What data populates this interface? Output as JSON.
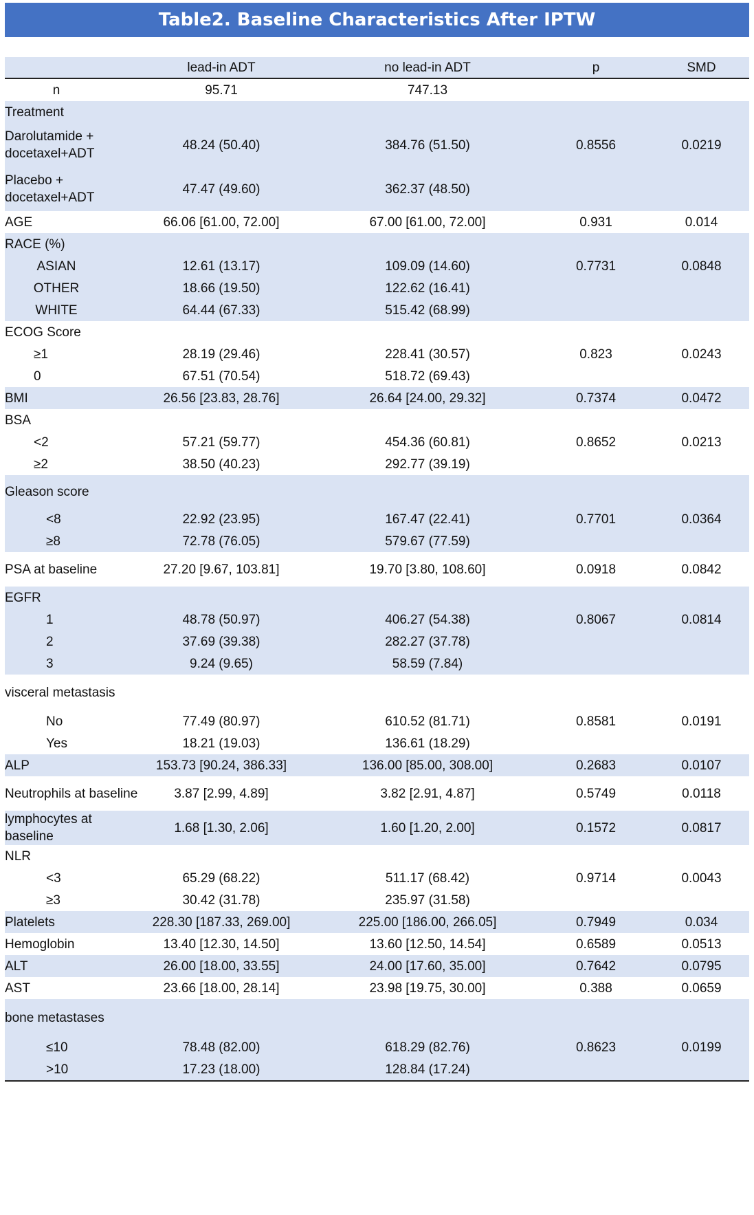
{
  "title": "Table2. Baseline Characteristics After IPTW",
  "columns": [
    "",
    "lead-in ADT",
    "no lead-in ADT",
    "p",
    "SMD"
  ],
  "rows": [
    {
      "label": "n",
      "a": "95.71",
      "b": "747.13",
      "p": "",
      "smd": ""
    },
    {
      "label": "Treatment",
      "a": "",
      "b": "",
      "p": "",
      "smd": ""
    },
    {
      "label": "Darolutamide + docetaxel+ADT",
      "a": "48.24 (50.40)",
      "b": "384.76 (51.50)",
      "p": "0.8556",
      "smd": "0.0219"
    },
    {
      "label": "Placebo + docetaxel+ADT",
      "a": "47.47 (49.60)",
      "b": "362.37 (48.50)",
      "p": "",
      "smd": ""
    },
    {
      "label": "AGE",
      "a": "66.06 [61.00, 72.00]",
      "b": "67.00 [61.00, 72.00]",
      "p": "0.931",
      "smd": "0.014"
    },
    {
      "label": "RACE (%)",
      "a": "",
      "b": "",
      "p": "",
      "smd": ""
    },
    {
      "label": "ASIAN",
      "a": "12.61 (13.17)",
      "b": "109.09 (14.60)",
      "p": "0.7731",
      "smd": "0.0848"
    },
    {
      "label": "OTHER",
      "a": "18.66 (19.50)",
      "b": "122.62 (16.41)",
      "p": "",
      "smd": ""
    },
    {
      "label": "WHITE",
      "a": "64.44 (67.33)",
      "b": "515.42 (68.99)",
      "p": "",
      "smd": ""
    },
    {
      "label": "ECOG Score",
      "a": "",
      "b": "",
      "p": "",
      "smd": ""
    },
    {
      "label": "≥1",
      "a": "28.19 (29.46)",
      "b": "228.41 (30.57)",
      "p": "0.823",
      "smd": "0.0243"
    },
    {
      "label": "0",
      "a": "67.51 (70.54)",
      "b": "518.72 (69.43)",
      "p": "",
      "smd": ""
    },
    {
      "label": "BMI",
      "a": "26.56 [23.83, 28.76]",
      "b": "26.64 [24.00, 29.32]",
      "p": "0.7374",
      "smd": "0.0472"
    },
    {
      "label": "BSA",
      "a": "",
      "b": "",
      "p": "",
      "smd": ""
    },
    {
      "label": "<2",
      "a": "57.21 (59.77)",
      "b": "454.36 (60.81)",
      "p": "0.8652",
      "smd": "0.0213"
    },
    {
      "label": "≥2",
      "a": "38.50 (40.23)",
      "b": "292.77 (39.19)",
      "p": "",
      "smd": ""
    },
    {
      "label": "Gleason score",
      "a": "",
      "b": "",
      "p": "",
      "smd": ""
    },
    {
      "label": "<8",
      "a": "22.92 (23.95)",
      "b": "167.47 (22.41)",
      "p": "0.7701",
      "smd": "0.0364"
    },
    {
      "label": "≥8",
      "a": "72.78 (76.05)",
      "b": "579.67 (77.59)",
      "p": "",
      "smd": ""
    },
    {
      "label": "PSA at baseline",
      "a": "27.20 [9.67, 103.81]",
      "b": "19.70 [3.80, 108.60]",
      "p": "0.0918",
      "smd": "0.0842"
    },
    {
      "label": "EGFR",
      "a": "",
      "b": "",
      "p": "",
      "smd": ""
    },
    {
      "label": "1",
      "a": "48.78 (50.97)",
      "b": "406.27 (54.38)",
      "p": "0.8067",
      "smd": "0.0814"
    },
    {
      "label": "2",
      "a": "37.69 (39.38)",
      "b": "282.27 (37.78)",
      "p": "",
      "smd": ""
    },
    {
      "label": "3",
      "a": "9.24 (9.65)",
      "b": "58.59 (7.84)",
      "p": "",
      "smd": ""
    },
    {
      "label": "visceral metastasis",
      "a": "",
      "b": "",
      "p": "",
      "smd": ""
    },
    {
      "label": "No",
      "a": "77.49 (80.97)",
      "b": "610.52 (81.71)",
      "p": "0.8581",
      "smd": "0.0191"
    },
    {
      "label": "Yes",
      "a": "18.21 (19.03)",
      "b": "136.61 (18.29)",
      "p": "",
      "smd": ""
    },
    {
      "label": "ALP",
      "a": "153.73 [90.24, 386.33]",
      "b": "136.00 [85.00, 308.00]",
      "p": "0.2683",
      "smd": "0.0107"
    },
    {
      "label": "Neutrophils at baseline",
      "a": "3.87 [2.99, 4.89]",
      "b": "3.82 [2.91, 4.87]",
      "p": "0.5749",
      "smd": "0.0118"
    },
    {
      "label": "lymphocytes at baseline",
      "a": "1.68 [1.30, 2.06]",
      "b": "1.60 [1.20, 2.00]",
      "p": "0.1572",
      "smd": "0.0817"
    },
    {
      "label": "NLR",
      "a": "",
      "b": "",
      "p": "",
      "smd": ""
    },
    {
      "label": "<3",
      "a": "65.29 (68.22)",
      "b": "511.17 (68.42)",
      "p": "0.9714",
      "smd": "0.0043"
    },
    {
      "label": "≥3",
      "a": "30.42 (31.78)",
      "b": "235.97 (31.58)",
      "p": "",
      "smd": ""
    },
    {
      "label": "Platelets",
      "a": "228.30 [187.33, 269.00]",
      "b": "225.00 [186.00, 266.05]",
      "p": "0.7949",
      "smd": "0.034"
    },
    {
      "label": "Hemoglobin",
      "a": "13.40 [12.30, 14.50]",
      "b": "13.60 [12.50, 14.54]",
      "p": "0.6589",
      "smd": "0.0513"
    },
    {
      "label": "ALT",
      "a": "26.00 [18.00, 33.55]",
      "b": "24.00 [17.60, 35.00]",
      "p": "0.7642",
      "smd": "0.0795"
    },
    {
      "label": "AST",
      "a": "23.66 [18.00, 28.14]",
      "b": "23.98 [19.75, 30.00]",
      "p": "0.388",
      "smd": "0.0659"
    },
    {
      "label": "bone metastases",
      "a": "",
      "b": "",
      "p": "",
      "smd": ""
    },
    {
      "label": "≤10",
      "a": "78.48 (82.00)",
      "b": "618.29 (82.76)",
      "p": "0.8623",
      "smd": "0.0199"
    },
    {
      "label": ">10",
      "a": "17.23 (18.00)",
      "b": "128.84 (17.24)",
      "p": "",
      "smd": ""
    }
  ]
}
